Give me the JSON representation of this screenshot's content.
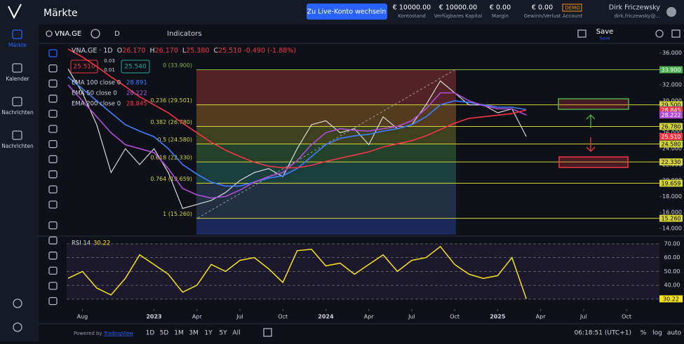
{
  "header": {
    "title": "Märkte",
    "live_button": "Zu Live-Konto wechseln",
    "stats": [
      {
        "value": "€ 10000.00",
        "label": "Kontostand"
      },
      {
        "value": "€ 10000.00",
        "label": "Verfügbares Kapital"
      },
      {
        "value": "€ 0.00",
        "label": "Margin"
      },
      {
        "value": "€ 0.00",
        "label": "Gewinn/Verlust"
      }
    ],
    "account_badge": "DEMO",
    "account_label": "Account",
    "user_name": "Dirk Friczewsky",
    "user_email": "dirk.friczewsky@..."
  },
  "sidebar": [
    "Märkte",
    "Kalender",
    "Nachrichten",
    "Nachrichten"
  ],
  "toolbar": {
    "symbol": "VNA.GE",
    "interval": "D",
    "indicators": "Indicators",
    "save": "Save",
    "save_sub": "Save"
  },
  "legend": {
    "symbol": "VNA.GE · 1D",
    "ohlc": [
      {
        "key": "O",
        "value": "26.170"
      },
      {
        "key": "H",
        "value": "26.170"
      },
      {
        "key": "L",
        "value": "25.380"
      },
      {
        "key": "C",
        "value": "25.510"
      }
    ],
    "change": "-0.490 (-1.88%)",
    "sell": "25.510",
    "spread_top": "0.03",
    "spread": "0.01",
    "buy": "25.540",
    "emas": [
      {
        "name": "EMA 100 close 0",
        "value": "28.891"
      },
      {
        "name": "EMA 50 close 0",
        "value": "28.222"
      },
      {
        "name": "EMA 200 close 0",
        "value": "28.845"
      }
    ]
  },
  "chart": {
    "type": "line",
    "xlim": [
      -1.1,
      40.3
    ],
    "ylim": [
      13.2,
      37.2
    ],
    "xticks": [
      {
        "value": 0,
        "label": "Aug"
      },
      {
        "value": 5,
        "label": "2023"
      },
      {
        "value": 8,
        "label": "Apr"
      },
      {
        "value": 11,
        "label": "Jul"
      },
      {
        "value": 14,
        "label": "Oct"
      },
      {
        "value": 17,
        "label": "2024"
      },
      {
        "value": 20,
        "label": "Apr"
      },
      {
        "value": 23,
        "label": "Jul"
      },
      {
        "value": 26,
        "label": "Oct"
      },
      {
        "value": 29,
        "label": "2025"
      },
      {
        "value": 32,
        "label": "Apr"
      },
      {
        "value": 35,
        "label": "Jul"
      },
      {
        "value": 38,
        "label": "Oct"
      }
    ],
    "yticks": [
      {
        "value": 14,
        "label": "14.000"
      },
      {
        "value": 16,
        "label": "16.000"
      },
      {
        "value": 18,
        "label": "18.000"
      },
      {
        "value": 20,
        "label": "20.000"
      },
      {
        "value": 22,
        "label": "22.000"
      },
      {
        "value": 24,
        "label": "24.000"
      },
      {
        "value": 26,
        "label": "26.000"
      },
      {
        "value": 28,
        "label": "28.000"
      },
      {
        "value": 30,
        "label": "30.000"
      },
      {
        "value": 32,
        "label": "32.000"
      },
      {
        "value": 34,
        "label": "34.000"
      },
      {
        "value": 36,
        "label": "36.000"
      }
    ],
    "x": [
      -1,
      0,
      1,
      2,
      3,
      4,
      5,
      6,
      7,
      8,
      9,
      10,
      11,
      12,
      13,
      14,
      15,
      16,
      17,
      18,
      19,
      20,
      21,
      22,
      23,
      24,
      25,
      26,
      27,
      28,
      29,
      30,
      31
    ],
    "series": [
      {
        "name": "Price",
        "color": "#d8d8d8",
        "values": [
          34,
          31,
          27,
          21,
          24,
          22,
          24,
          21,
          16.5,
          17,
          17.5,
          18.5,
          20,
          21,
          21.5,
          20.5,
          24,
          27,
          27.5,
          26,
          26.5,
          24.5,
          28,
          26.5,
          27,
          29.5,
          32.5,
          31,
          29.5,
          29.5,
          28.5,
          29,
          25.51
        ]
      },
      {
        "name": "EMA 100",
        "color": "#3d7fff",
        "values": [
          33,
          31.5,
          30,
          28.5,
          27,
          26.2,
          25.5,
          24,
          22,
          20.8,
          19.8,
          19.3,
          19.3,
          19.8,
          20.3,
          20.6,
          21.5,
          23,
          24.5,
          25.3,
          25.6,
          25.8,
          26.2,
          26.5,
          27,
          28,
          29.5,
          30,
          29.8,
          29.5,
          29.2,
          29.2,
          28.891
        ]
      },
      {
        "name": "EMA 50",
        "color": "#b04dd8",
        "values": [
          32,
          30,
          28,
          26,
          24.5,
          24,
          23.5,
          21.5,
          19,
          18.2,
          17.8,
          18,
          18.8,
          19.8,
          20.5,
          21,
          22.5,
          24.5,
          26,
          26.5,
          26.3,
          26.2,
          26.5,
          26.8,
          27.5,
          29,
          31,
          31,
          30,
          29.4,
          29,
          29,
          28.222
        ]
      },
      {
        "name": "EMA 200",
        "color": "#f23645",
        "values": [
          36.5,
          35.5,
          34.3,
          33,
          31.8,
          30.5,
          29.5,
          28.5,
          27.2,
          26,
          24.8,
          23.8,
          23,
          22.3,
          21.8,
          21.6,
          21.6,
          21.9,
          22.4,
          22.8,
          23.2,
          23.6,
          24.2,
          24.6,
          25,
          25.6,
          26.4,
          27.2,
          27.8,
          28,
          28.2,
          28.4,
          28.845
        ]
      }
    ],
    "fib": [
      {
        "label": "0 (33.900)",
        "value": 33.9,
        "color": "#7cb342",
        "band": "#6b2a2e"
      },
      {
        "label": "0.236 (29.501)",
        "value": 29.501,
        "color": "#d4d43a",
        "band": "#6b4a22"
      },
      {
        "label": "0.382 (26.780)",
        "value": 26.78,
        "color": "#d4d43a",
        "band": "#4e5222"
      },
      {
        "label": "0.5 (24.580)",
        "value": 24.58,
        "color": "#d4d43a",
        "band": "#2c5230"
      },
      {
        "label": "0.618 (22.330)",
        "value": 22.33,
        "color": "#d4d43a",
        "band": "#1f4e48"
      },
      {
        "label": "0.764 (19.659)",
        "value": 19.659,
        "color": "#d4d43a",
        "band": "#283c52"
      },
      {
        "label": "1 (15.260)",
        "value": 15.26,
        "color": "#d4d43a",
        "band": "#1f3170"
      }
    ],
    "price_labels": [
      {
        "value": 33.9,
        "label": "33.900",
        "color": "#4caf50"
      },
      {
        "value": 29.5,
        "label": "29.500",
        "color": "#d4d43a"
      },
      {
        "value": 28.891,
        "label": "28.891",
        "color": "#3d7fff"
      },
      {
        "value": 28.845,
        "label": "28.845",
        "color": "#f23645"
      },
      {
        "value": 28.222,
        "label": "28.222",
        "color": "#b04dd8"
      },
      {
        "value": 26.78,
        "label": "26.780",
        "color": "#d4d43a"
      },
      {
        "value": 25.51,
        "label": "25.510",
        "color": "#f23645"
      },
      {
        "value": 24.58,
        "label": "24.580",
        "color": "#d4d43a"
      },
      {
        "value": 22.33,
        "label": "22.330",
        "color": "#d4d43a"
      },
      {
        "value": 19.659,
        "label": "19.659",
        "color": "#d4d43a"
      },
      {
        "value": 15.26,
        "label": "15.260",
        "color": "#d4d43a"
      }
    ],
    "rsi": {
      "name": "RSI 14",
      "last": "30.22",
      "color": "#f5e31b",
      "ylim": [
        23.4,
        74
      ],
      "yticks": [
        {
          "value": 30,
          "label": "30.00"
        },
        {
          "value": 40,
          "label": "40.00"
        },
        {
          "value": 50,
          "label": "50.00"
        },
        {
          "value": 60,
          "label": "60.00"
        },
        {
          "value": 70,
          "label": "70.00"
        }
      ],
      "values": [
        45,
        50,
        38,
        33,
        45,
        62,
        55,
        48,
        35,
        40,
        55,
        50,
        58,
        60,
        52,
        42,
        65,
        66,
        54,
        56,
        48,
        55,
        62,
        50,
        58,
        60,
        68,
        55,
        48,
        45,
        47,
        60,
        30.22
      ]
    }
  },
  "bottom": {
    "ranges": [
      "1D",
      "5D",
      "1M",
      "3M",
      "1Y",
      "5Y",
      "All"
    ],
    "time": "06:18:51 (UTC+1)",
    "percent": "%",
    "log": "log",
    "auto": "auto",
    "powered": "Powered by",
    "tradingview": "TradingView"
  }
}
